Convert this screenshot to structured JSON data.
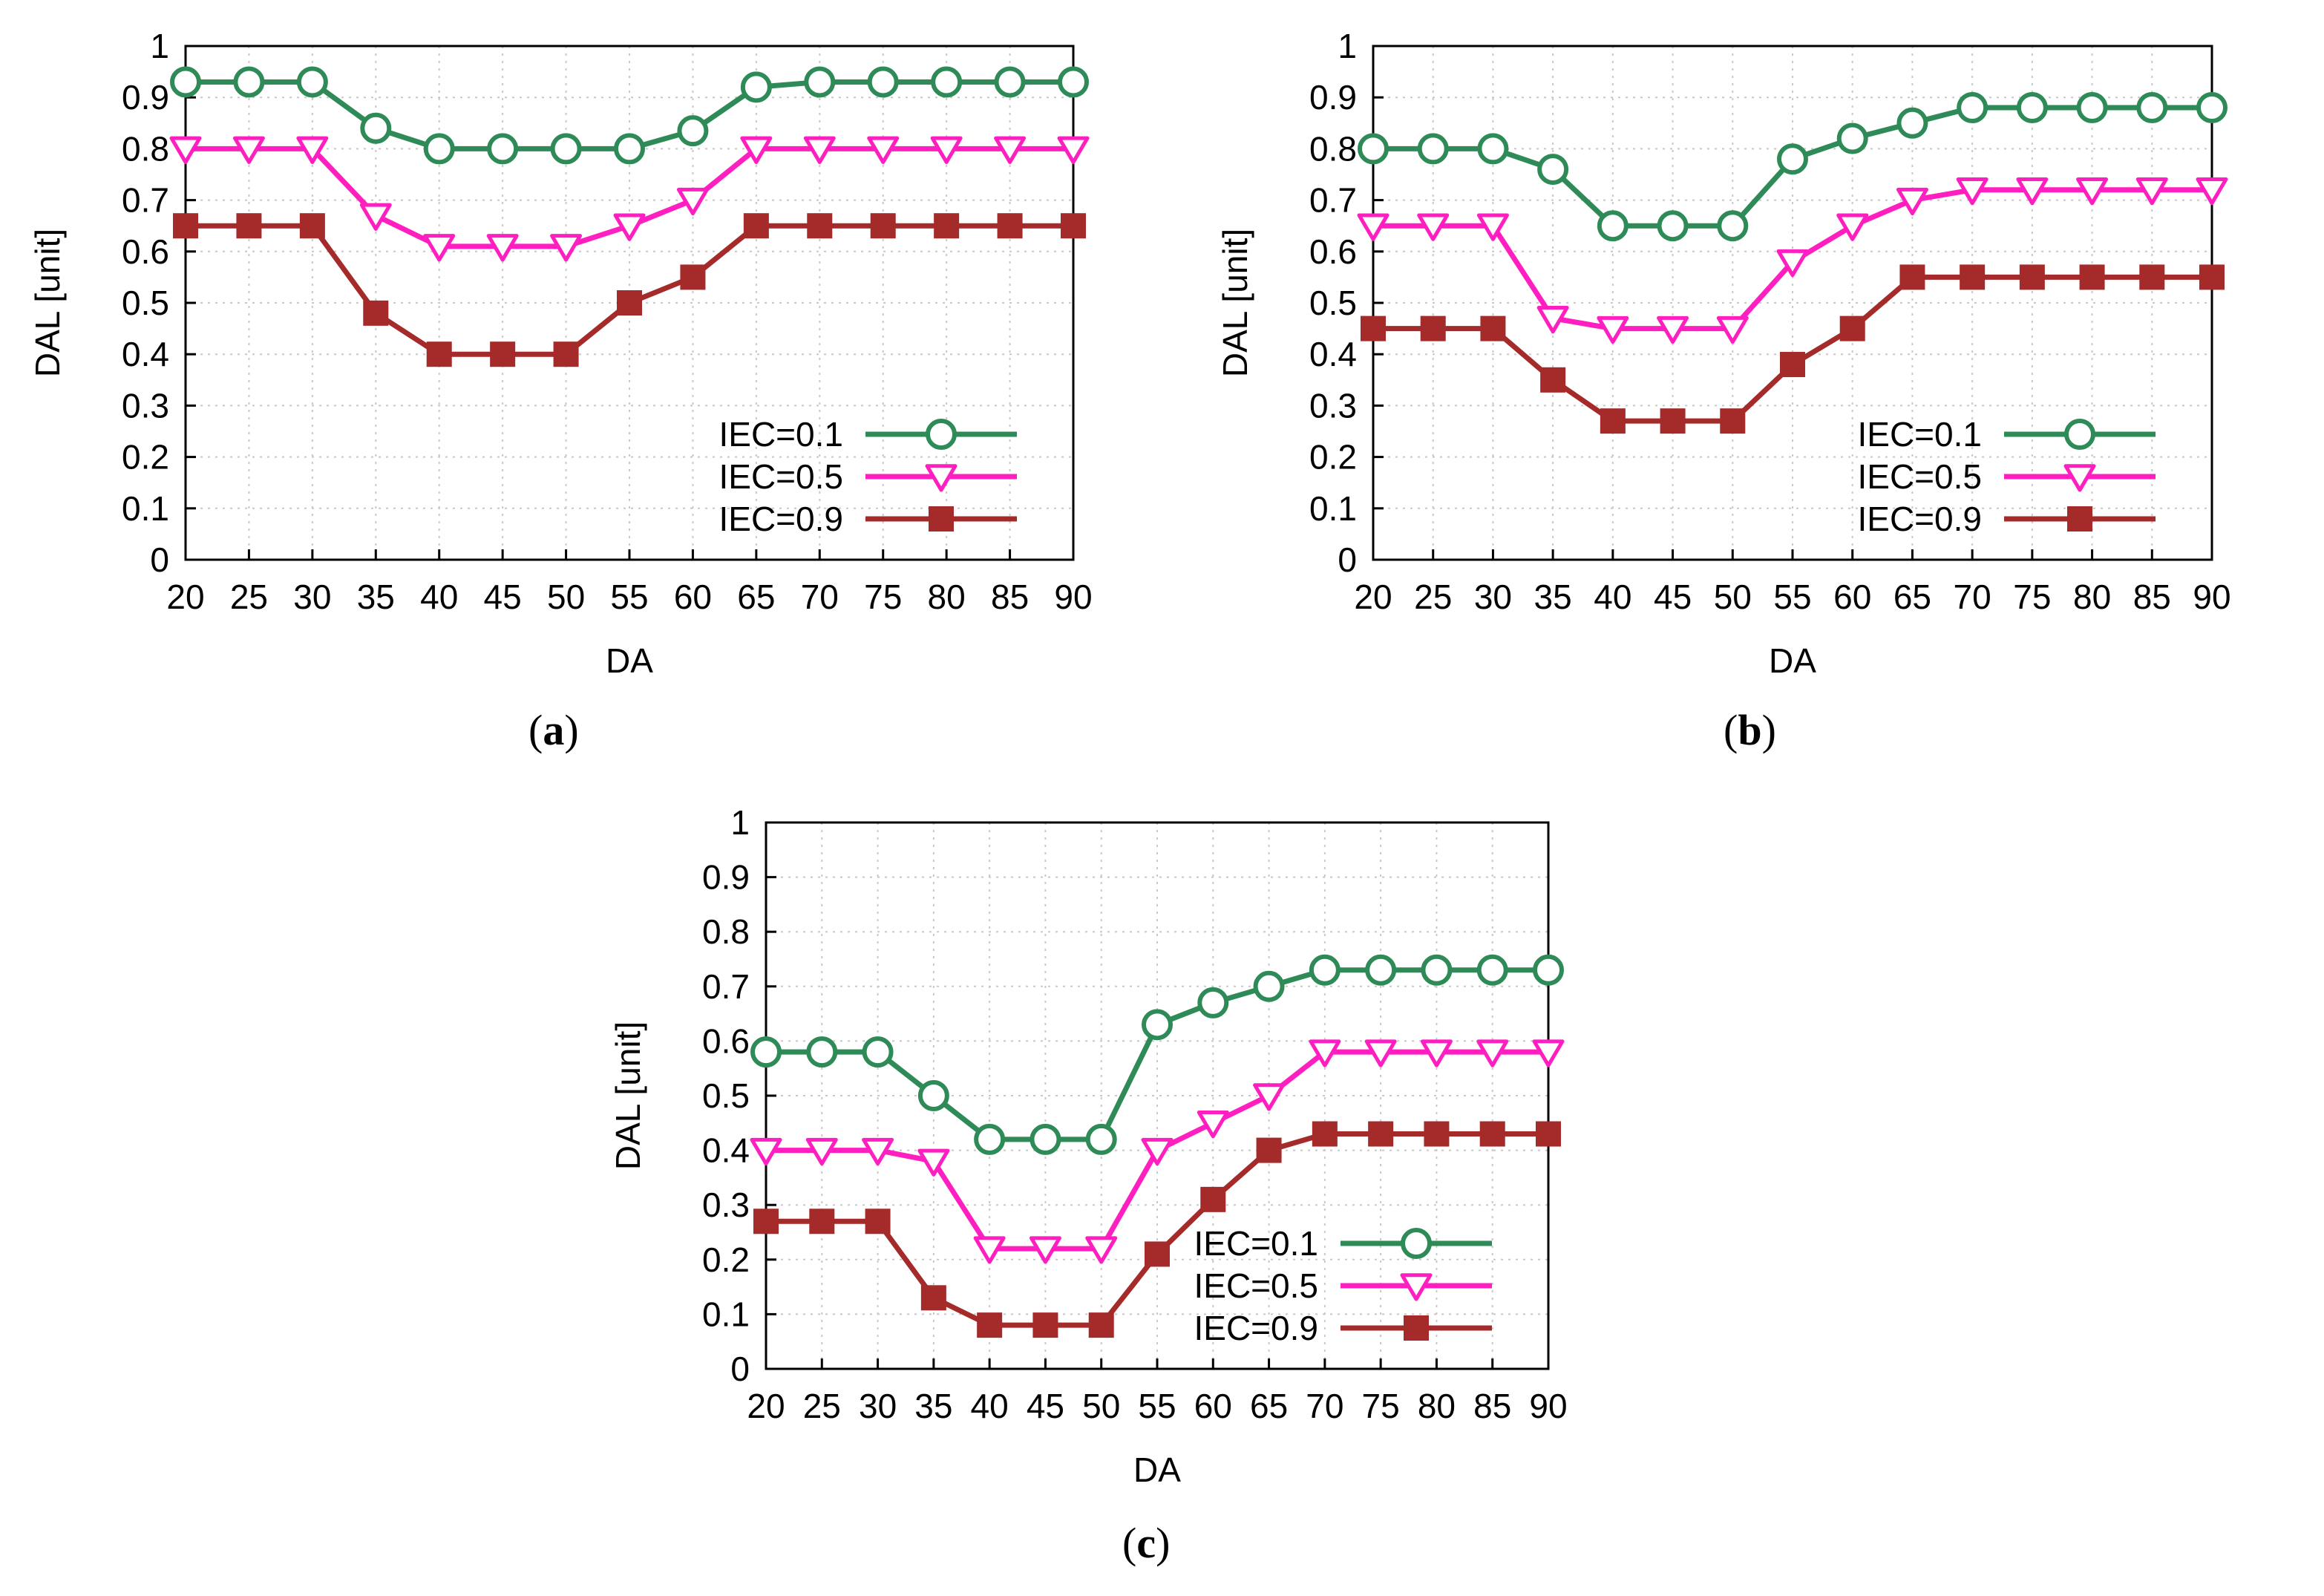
{
  "colors": {
    "iec01": "#2e8b57",
    "iec05": "#ff1fc0",
    "iec09": "#a52a2a"
  },
  "chart_data": [
    {
      "panel": "(a)",
      "type": "line",
      "xlabel": "DA",
      "ylabel": "DAL [unit]",
      "x": [
        20,
        25,
        30,
        35,
        40,
        45,
        50,
        55,
        60,
        65,
        70,
        75,
        80,
        85,
        90
      ],
      "xlim": [
        20,
        90
      ],
      "ylim": [
        0,
        1
      ],
      "yticks": [
        "0",
        "0.1",
        "0.2",
        "0.3",
        "0.4",
        "0.5",
        "0.6",
        "0.7",
        "0.8",
        "0.9",
        "1"
      ],
      "grid": true,
      "legend_position": "bottom-right",
      "series": [
        {
          "name": "IEC=0.1",
          "marker": "circle",
          "values": [
            0.93,
            0.93,
            0.93,
            0.84,
            0.8,
            0.8,
            0.8,
            0.8,
            0.835,
            0.92,
            0.93,
            0.93,
            0.93,
            0.93,
            0.93
          ]
        },
        {
          "name": "IEC=0.5",
          "marker": "triangle-down",
          "values": [
            0.8,
            0.8,
            0.8,
            0.67,
            0.61,
            0.61,
            0.61,
            0.65,
            0.7,
            0.8,
            0.8,
            0.8,
            0.8,
            0.8,
            0.8
          ]
        },
        {
          "name": "IEC=0.9",
          "marker": "square",
          "values": [
            0.65,
            0.65,
            0.65,
            0.48,
            0.4,
            0.4,
            0.4,
            0.5,
            0.55,
            0.65,
            0.65,
            0.65,
            0.65,
            0.65,
            0.65
          ]
        }
      ]
    },
    {
      "panel": "(b)",
      "type": "line",
      "xlabel": "DA",
      "ylabel": "DAL [unit]",
      "x": [
        20,
        25,
        30,
        35,
        40,
        45,
        50,
        55,
        60,
        65,
        70,
        75,
        80,
        85,
        90
      ],
      "xlim": [
        20,
        90
      ],
      "ylim": [
        0,
        1
      ],
      "yticks": [
        "0",
        "0.1",
        "0.2",
        "0.3",
        "0.4",
        "0.5",
        "0.6",
        "0.7",
        "0.8",
        "0.9",
        "1"
      ],
      "grid": true,
      "legend_position": "bottom-right",
      "series": [
        {
          "name": "IEC=0.1",
          "marker": "circle",
          "values": [
            0.8,
            0.8,
            0.8,
            0.76,
            0.65,
            0.65,
            0.65,
            0.78,
            0.82,
            0.85,
            0.88,
            0.88,
            0.88,
            0.88,
            0.88
          ]
        },
        {
          "name": "IEC=0.5",
          "marker": "triangle-down",
          "values": [
            0.65,
            0.65,
            0.65,
            0.47,
            0.45,
            0.45,
            0.45,
            0.58,
            0.65,
            0.7,
            0.72,
            0.72,
            0.72,
            0.72,
            0.72
          ]
        },
        {
          "name": "IEC=0.9",
          "marker": "square",
          "values": [
            0.45,
            0.45,
            0.45,
            0.35,
            0.27,
            0.27,
            0.27,
            0.38,
            0.45,
            0.55,
            0.55,
            0.55,
            0.55,
            0.55,
            0.55
          ]
        }
      ]
    },
    {
      "panel": "(c)",
      "type": "line",
      "xlabel": "DA",
      "ylabel": "DAL [unit]",
      "x": [
        20,
        25,
        30,
        35,
        40,
        45,
        50,
        55,
        60,
        65,
        70,
        75,
        80,
        85,
        90
      ],
      "xlim": [
        20,
        90
      ],
      "ylim": [
        0,
        1
      ],
      "yticks": [
        "0",
        "0.1",
        "0.2",
        "0.3",
        "0.4",
        "0.5",
        "0.6",
        "0.7",
        "0.8",
        "0.9",
        "1"
      ],
      "grid": true,
      "legend_position": "bottom-right",
      "series": [
        {
          "name": "IEC=0.1",
          "marker": "circle",
          "values": [
            0.58,
            0.58,
            0.58,
            0.5,
            0.42,
            0.42,
            0.42,
            0.63,
            0.67,
            0.7,
            0.73,
            0.73,
            0.73,
            0.73,
            0.73
          ]
        },
        {
          "name": "IEC=0.5",
          "marker": "triangle-down",
          "values": [
            0.4,
            0.4,
            0.4,
            0.38,
            0.22,
            0.22,
            0.22,
            0.4,
            0.45,
            0.5,
            0.58,
            0.58,
            0.58,
            0.58,
            0.58
          ]
        },
        {
          "name": "IEC=0.9",
          "marker": "square",
          "values": [
            0.27,
            0.27,
            0.27,
            0.13,
            0.08,
            0.08,
            0.08,
            0.21,
            0.31,
            0.4,
            0.43,
            0.43,
            0.43,
            0.43,
            0.43
          ]
        }
      ]
    }
  ]
}
